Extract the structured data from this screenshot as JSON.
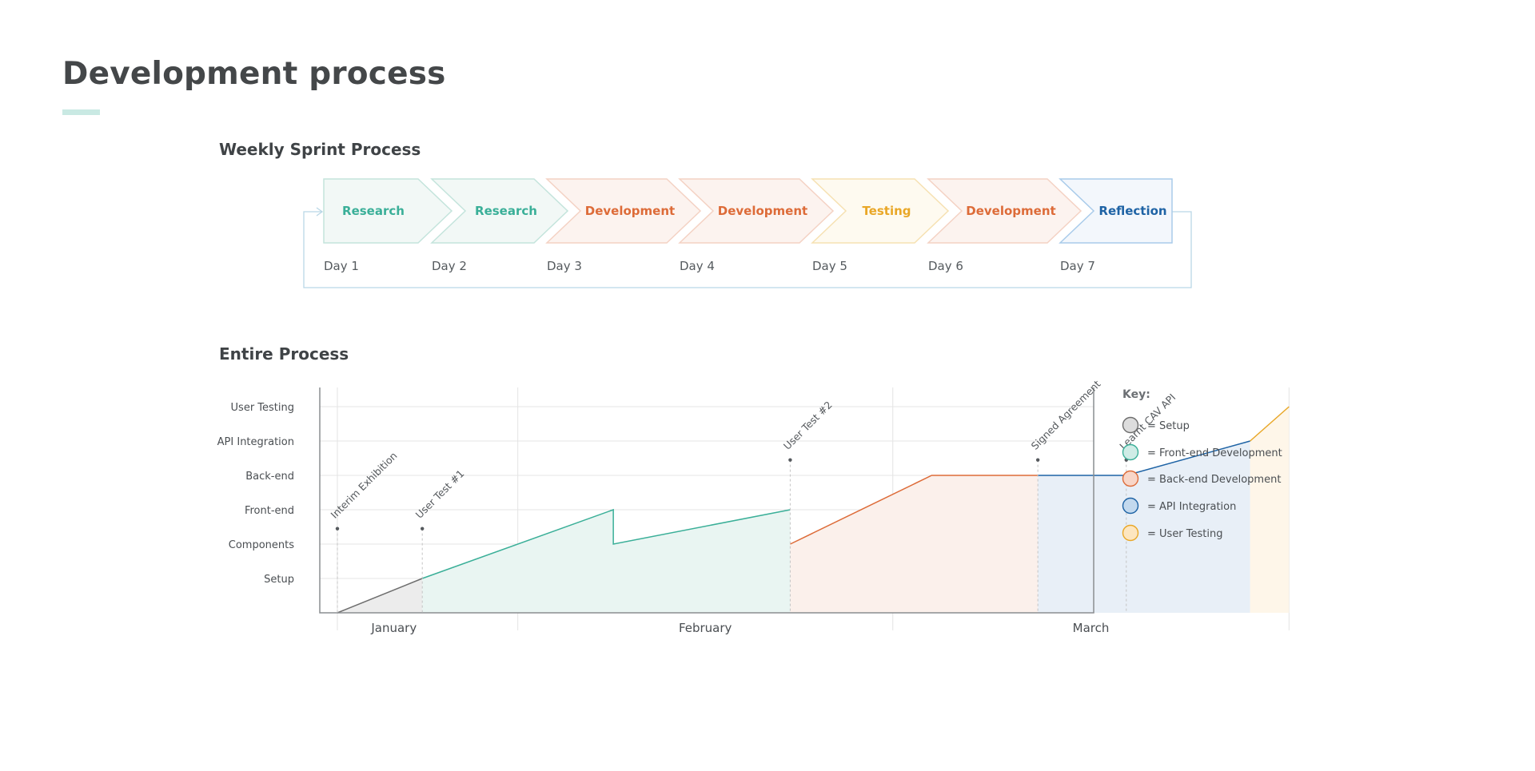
{
  "page": {
    "title": "Development process"
  },
  "sprint": {
    "title": "Weekly Sprint Process",
    "steps": [
      {
        "label": "Research",
        "day": "Day 1",
        "color": "#3aaf98",
        "fill": "#f2f8f6",
        "stroke": "#c4e4dc"
      },
      {
        "label": "Research",
        "day": "Day 2",
        "color": "#3aaf98",
        "fill": "#f2f8f6",
        "stroke": "#c4e4dc"
      },
      {
        "label": "Development",
        "day": "Day 3",
        "color": "#dd6b38",
        "fill": "#fcf3ef",
        "stroke": "#f4d2c4"
      },
      {
        "label": "Development",
        "day": "Day 4",
        "color": "#dd6b38",
        "fill": "#fcf3ef",
        "stroke": "#f4d2c4"
      },
      {
        "label": "Testing",
        "day": "Day 5",
        "color": "#e9a727",
        "fill": "#fefaf0",
        "stroke": "#f6e1b2"
      },
      {
        "label": "Development",
        "day": "Day 6",
        "color": "#dd6b38",
        "fill": "#fcf3ef",
        "stroke": "#f4d2c4"
      },
      {
        "label": "Reflection",
        "day": "Day 7",
        "color": "#1e63a5",
        "fill": "#f3f7fc",
        "stroke": "#a9cbea"
      }
    ]
  },
  "process": {
    "title": "Entire Process",
    "key_title": "Key:",
    "key": [
      {
        "label": "= Setup",
        "fill": "#dddddd",
        "stroke": "#6e6e6e"
      },
      {
        "label": "= Front-end Development",
        "fill": "#cfece6",
        "stroke": "#3aaf98"
      },
      {
        "label": "= Back-end Development",
        "fill": "#f8d6c8",
        "stroke": "#dd6b38"
      },
      {
        "label": "= API Integration",
        "fill": "#c3d9ee",
        "stroke": "#1e63a5"
      },
      {
        "label": "= User Testing",
        "fill": "#fde6c0",
        "stroke": "#e9a727"
      }
    ]
  },
  "chart_data": {
    "type": "area",
    "x_unit": "week of semester (0 = start of January, 12 = end of March)",
    "categories": [
      "January",
      "February",
      "March"
    ],
    "levels": [
      "Setup",
      "Components",
      "Front-end",
      "Back-end",
      "API Integration",
      "User Testing"
    ],
    "ylim": [
      0,
      6
    ],
    "series": [
      {
        "name": "Setup",
        "color": "#6e6e6e",
        "fill": "#ececec",
        "points": [
          [
            0,
            0
          ],
          [
            1.2,
            1
          ]
        ]
      },
      {
        "name": "Front-end",
        "color": "#3aaf98",
        "fill": "#e9f5f2",
        "points": [
          [
            1.2,
            1
          ],
          [
            3.9,
            3
          ],
          [
            3.9,
            2
          ],
          [
            6.4,
            3
          ]
        ]
      },
      {
        "name": "Back-end",
        "color": "#dd6b38",
        "fill": "#fbf0eb",
        "points": [
          [
            6.4,
            2
          ],
          [
            8.4,
            4
          ],
          [
            9.9,
            4
          ]
        ]
      },
      {
        "name": "API Integration",
        "color": "#1e63a5",
        "fill": "#e8eff7",
        "points": [
          [
            9.9,
            4
          ],
          [
            11.15,
            4
          ],
          [
            12.9,
            5
          ]
        ]
      },
      {
        "name": "User Testing",
        "color": "#e9a727",
        "fill": "#fef6e9",
        "points": [
          [
            12.9,
            5
          ],
          [
            13.45,
            6
          ]
        ]
      }
    ],
    "milestones": [
      {
        "label": "Interim Exhibition",
        "x": 0,
        "level": 2.45
      },
      {
        "label": "User Test #1",
        "x": 1.2,
        "level": 2.45
      },
      {
        "label": "User Test #2",
        "x": 6.4,
        "level": 4.45
      },
      {
        "label": "Signed Agreement",
        "x": 9.9,
        "level": 4.45
      },
      {
        "label": "Learnt CAV API",
        "x": 11.15,
        "level": 4.45
      }
    ],
    "month_dividers": [
      2.55,
      7.85,
      13.45
    ],
    "grid": true
  }
}
